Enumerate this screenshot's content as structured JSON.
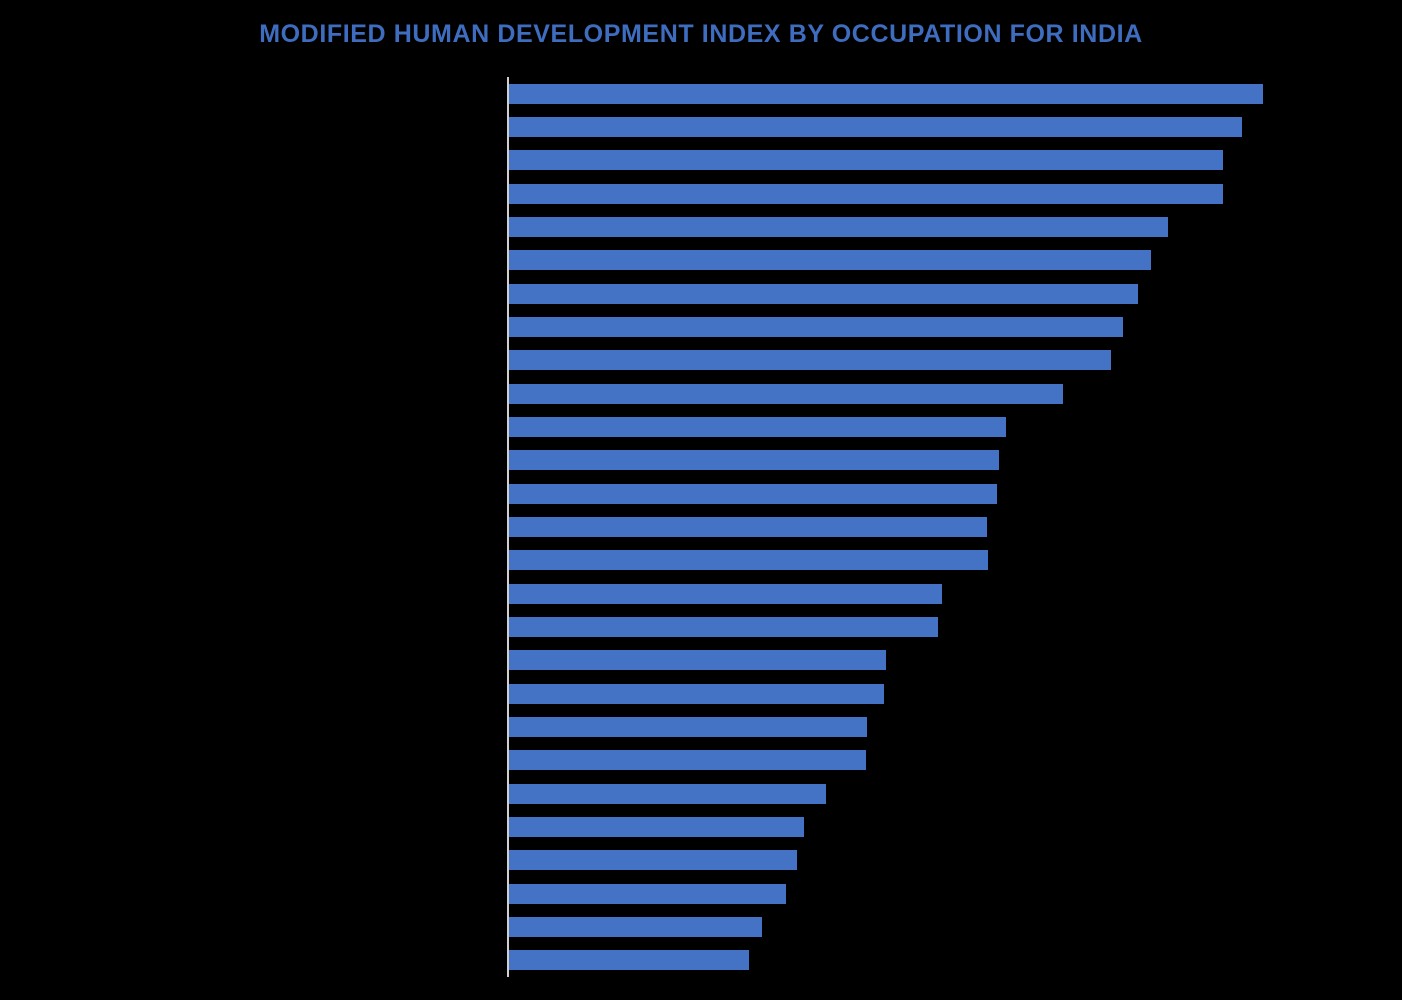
{
  "page": {
    "background_color": "#000000"
  },
  "header": {
    "title": "MODIFIED HUMAN DEVELOPMENT INDEX BY OCCUPATION FOR INDIA",
    "title_color": "#3E6CBF"
  },
  "chart_data": {
    "type": "bar",
    "orientation": "horizontal",
    "title": "MODIFIED HUMAN DEVELOPMENT INDEX BY OCCUPATION FOR INDIA",
    "xlabel": "",
    "ylabel": "",
    "xlim": [
      0,
      0.7
    ],
    "bar_count": 27,
    "category_labels_visible": false,
    "axis_tick_labels_visible": false,
    "gridlines": false,
    "legend": false,
    "bar_color": "#4472C4",
    "axis_line_color": "#CFCFCF",
    "values": [
      0.66,
      0.641,
      0.625,
      0.625,
      0.577,
      0.562,
      0.55,
      0.537,
      0.527,
      0.485,
      0.435,
      0.429,
      0.427,
      0.418,
      0.419,
      0.379,
      0.375,
      0.33,
      0.328,
      0.313,
      0.312,
      0.277,
      0.258,
      0.252,
      0.242,
      0.221,
      0.21
    ]
  }
}
